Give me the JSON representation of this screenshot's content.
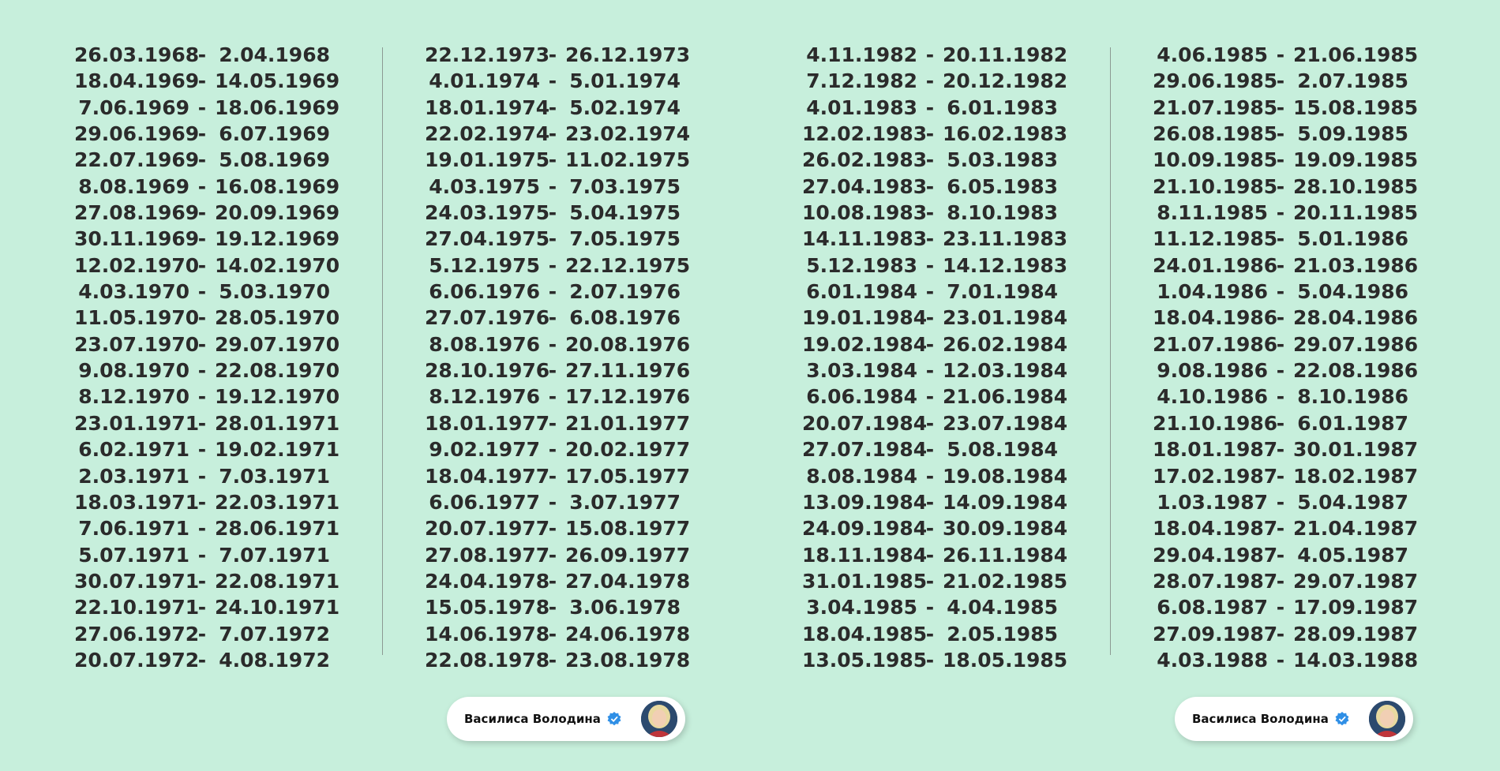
{
  "columns": [
    {
      "rows": [
        {
          "start": "26.03.1968",
          "end": "2.04.1968"
        },
        {
          "start": "18.04.1969",
          "end": "14.05.1969"
        },
        {
          "start": "7.06.1969",
          "end": "18.06.1969"
        },
        {
          "start": "29.06.1969",
          "end": "6.07.1969"
        },
        {
          "start": "22.07.1969",
          "end": "5.08.1969"
        },
        {
          "start": "8.08.1969",
          "end": "16.08.1969"
        },
        {
          "start": "27.08.1969",
          "end": "20.09.1969"
        },
        {
          "start": "30.11.1969",
          "end": "19.12.1969"
        },
        {
          "start": "12.02.1970",
          "end": "14.02.1970"
        },
        {
          "start": "4.03.1970",
          "end": "5.03.1970"
        },
        {
          "start": "11.05.1970",
          "end": "28.05.1970"
        },
        {
          "start": "23.07.1970",
          "end": "29.07.1970"
        },
        {
          "start": "9.08.1970",
          "end": "22.08.1970"
        },
        {
          "start": "8.12.1970",
          "end": "19.12.1970"
        },
        {
          "start": "23.01.1971",
          "end": "28.01.1971"
        },
        {
          "start": "6.02.1971",
          "end": "19.02.1971"
        },
        {
          "start": "2.03.1971",
          "end": "7.03.1971"
        },
        {
          "start": "18.03.1971",
          "end": "22.03.1971"
        },
        {
          "start": "7.06.1971",
          "end": "28.06.1971"
        },
        {
          "start": "5.07.1971",
          "end": "7.07.1971"
        },
        {
          "start": "30.07.1971",
          "end": "22.08.1971"
        },
        {
          "start": "22.10.1971",
          "end": "24.10.1971"
        },
        {
          "start": "27.06.1972",
          "end": "7.07.1972"
        },
        {
          "start": "20.07.1972",
          "end": "4.08.1972"
        }
      ]
    },
    {
      "rows": [
        {
          "start": "22.12.1973",
          "end": "26.12.1973"
        },
        {
          "start": "4.01.1974",
          "end": "5.01.1974"
        },
        {
          "start": "18.01.1974",
          "end": "5.02.1974"
        },
        {
          "start": "22.02.1974",
          "end": "23.02.1974"
        },
        {
          "start": "19.01.1975",
          "end": "11.02.1975"
        },
        {
          "start": "4.03.1975",
          "end": "7.03.1975"
        },
        {
          "start": "24.03.1975",
          "end": "5.04.1975"
        },
        {
          "start": "27.04.1975",
          "end": "7.05.1975"
        },
        {
          "start": "5.12.1975",
          "end": "22.12.1975"
        },
        {
          "start": "6.06.1976",
          "end": "2.07.1976"
        },
        {
          "start": "27.07.1976",
          "end": "6.08.1976"
        },
        {
          "start": "8.08.1976",
          "end": "20.08.1976"
        },
        {
          "start": "28.10.1976",
          "end": "27.11.1976"
        },
        {
          "start": "8.12.1976",
          "end": "17.12.1976"
        },
        {
          "start": "18.01.1977",
          "end": "21.01.1977"
        },
        {
          "start": "9.02.1977",
          "end": "20.02.1977"
        },
        {
          "start": "18.04.1977",
          "end": "17.05.1977"
        },
        {
          "start": "6.06.1977",
          "end": "3.07.1977"
        },
        {
          "start": "20.07.1977",
          "end": "15.08.1977"
        },
        {
          "start": "27.08.1977",
          "end": "26.09.1977"
        },
        {
          "start": "24.04.1978",
          "end": "27.04.1978"
        },
        {
          "start": "15.05.1978",
          "end": "3.06.1978"
        },
        {
          "start": "14.06.1978",
          "end": "24.06.1978"
        },
        {
          "start": "22.08.1978",
          "end": "23.08.1978"
        }
      ]
    },
    {
      "rows": [
        {
          "start": "4.11.1982",
          "end": "20.11.1982"
        },
        {
          "start": "7.12.1982",
          "end": "20.12.1982"
        },
        {
          "start": "4.01.1983",
          "end": "6.01.1983"
        },
        {
          "start": "12.02.1983",
          "end": "16.02.1983"
        },
        {
          "start": "26.02.1983",
          "end": "5.03.1983"
        },
        {
          "start": "27.04.1983",
          "end": "6.05.1983"
        },
        {
          "start": "10.08.1983",
          "end": "8.10.1983"
        },
        {
          "start": "14.11.1983",
          "end": "23.11.1983"
        },
        {
          "start": "5.12.1983",
          "end": "14.12.1983"
        },
        {
          "start": "6.01.1984",
          "end": "7.01.1984"
        },
        {
          "start": "19.01.1984",
          "end": "23.01.1984"
        },
        {
          "start": "19.02.1984",
          "end": "26.02.1984"
        },
        {
          "start": "3.03.1984",
          "end": "12.03.1984"
        },
        {
          "start": "6.06.1984",
          "end": "21.06.1984"
        },
        {
          "start": "20.07.1984",
          "end": "23.07.1984"
        },
        {
          "start": "27.07.1984",
          "end": "5.08.1984"
        },
        {
          "start": "8.08.1984",
          "end": "19.08.1984"
        },
        {
          "start": "13.09.1984",
          "end": "14.09.1984"
        },
        {
          "start": "24.09.1984",
          "end": "30.09.1984"
        },
        {
          "start": "18.11.1984",
          "end": "26.11.1984"
        },
        {
          "start": "31.01.1985",
          "end": "21.02.1985"
        },
        {
          "start": "3.04.1985",
          "end": "4.04.1985"
        },
        {
          "start": "18.04.1985",
          "end": "2.05.1985"
        },
        {
          "start": "13.05.1985",
          "end": "18.05.1985"
        }
      ]
    },
    {
      "rows": [
        {
          "start": "4.06.1985",
          "end": "21.06.1985"
        },
        {
          "start": "29.06.1985",
          "end": "2.07.1985"
        },
        {
          "start": "21.07.1985",
          "end": "15.08.1985"
        },
        {
          "start": "26.08.1985",
          "end": "5.09.1985"
        },
        {
          "start": "10.09.1985",
          "end": "19.09.1985"
        },
        {
          "start": "21.10.1985",
          "end": "28.10.1985"
        },
        {
          "start": "8.11.1985",
          "end": "20.11.1985"
        },
        {
          "start": "11.12.1985",
          "end": "5.01.1986"
        },
        {
          "start": "24.01.1986",
          "end": "21.03.1986"
        },
        {
          "start": "1.04.1986",
          "end": "5.04.1986"
        },
        {
          "start": "18.04.1986",
          "end": "28.04.1986"
        },
        {
          "start": "21.07.1986",
          "end": "29.07.1986"
        },
        {
          "start": "9.08.1986",
          "end": "22.08.1986"
        },
        {
          "start": "4.10.1986",
          "end": "8.10.1986"
        },
        {
          "start": "21.10.1986",
          "end": "6.01.1987"
        },
        {
          "start": "18.01.1987",
          "end": "30.01.1987"
        },
        {
          "start": "17.02.1987",
          "end": "18.02.1987"
        },
        {
          "start": "1.03.1987",
          "end": "5.04.1987"
        },
        {
          "start": "18.04.1987",
          "end": "21.04.1987"
        },
        {
          "start": "29.04.1987",
          "end": "4.05.1987"
        },
        {
          "start": "28.07.1987",
          "end": "29.07.1987"
        },
        {
          "start": "6.08.1987",
          "end": "17.09.1987"
        },
        {
          "start": "27.09.1987",
          "end": "28.09.1987"
        },
        {
          "start": "4.03.1988",
          "end": "14.03.1988"
        }
      ]
    }
  ],
  "separator": "-",
  "badges": [
    {
      "name": "Василиса Володина",
      "icon": "verified-icon"
    },
    {
      "name": "Василиса Володина",
      "icon": "verified-icon"
    }
  ],
  "colors": {
    "background": "#c7efdc",
    "text": "#2b2b2b",
    "verified": "#2f8fe6"
  }
}
